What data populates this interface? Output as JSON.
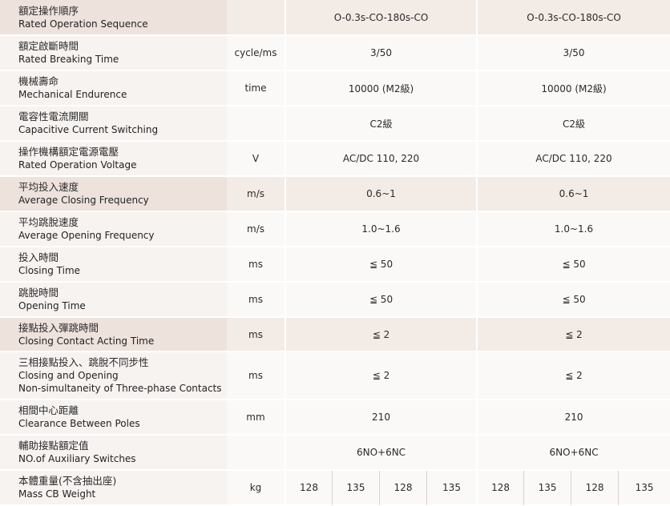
{
  "rows": [
    {
      "zh": "額定操作順序",
      "en": "Rated Operation Sequence",
      "unit": "",
      "v1": "O-0.3s-CO-180s-CO",
      "v2": "O-0.3s-CO-180s-CO"
    },
    {
      "zh": "額定啟斷時間",
      "en": "Rated Breaking Time",
      "unit": "cycle/ms",
      "v1": "3/50",
      "v2": "3/50"
    },
    {
      "zh": "機械壽命",
      "en": "Mechanical Endurence",
      "unit": "time",
      "v1": "10000 (M2級)",
      "v2": "10000 (M2級)"
    },
    {
      "zh": "電容性電流開關",
      "en": "Capacitive Current Switching",
      "unit": "",
      "v1": "C2級",
      "v2": "C2級"
    },
    {
      "zh": "操作機構額定電源電壓",
      "en": "Rated Operation Voltage",
      "unit": "V",
      "v1": "AC/DC  110, 220",
      "v2": "AC/DC  110, 220"
    },
    {
      "zh": "平均投入速度",
      "en": "Average Closing Frequency",
      "unit": "m/s",
      "v1": "0.6~1",
      "v2": "0.6~1"
    },
    {
      "zh": "平均跳脫速度",
      "en": "Average Opening Frequency",
      "unit": "m/s",
      "v1": "1.0~1.6",
      "v2": "1.0~1.6"
    },
    {
      "zh": "投入時間",
      "en": "Closing Time",
      "unit": "ms",
      "v1": "≦ 50",
      "v2": "≦ 50"
    },
    {
      "zh": "跳脫時間",
      "en": "Opening Time",
      "unit": "ms",
      "v1": "≦ 50",
      "v2": "≦ 50"
    },
    {
      "zh": "接點投入彈跳時間",
      "en": "Closing Contact Acting Time",
      "unit": "ms",
      "v1": "≦ 2",
      "v2": "≦ 2"
    },
    {
      "zh": "三相接點投入、跳脫不同步性",
      "en": "Closing and Opening",
      "en2": "Non-simultaneity of Three-phase Contacts",
      "unit": "ms",
      "v1": "≦ 2",
      "v2": "≦ 2"
    },
    {
      "zh": "相間中心距離",
      "en": "Clearance Between Poles",
      "unit": "mm",
      "v1": "210",
      "v2": "210"
    },
    {
      "zh": "輔助接點額定值",
      "en": "NO.of Auxiliary Switches",
      "unit": "",
      "v1": "6NO+6NC",
      "v2": "6NO+6NC"
    }
  ],
  "weight": {
    "zh": "本體重量(不含抽出座)",
    "en": "Mass CB Weight",
    "unit": "kg",
    "values": [
      "128",
      "135",
      "128",
      "135",
      "128",
      "135",
      "128",
      "135"
    ]
  }
}
